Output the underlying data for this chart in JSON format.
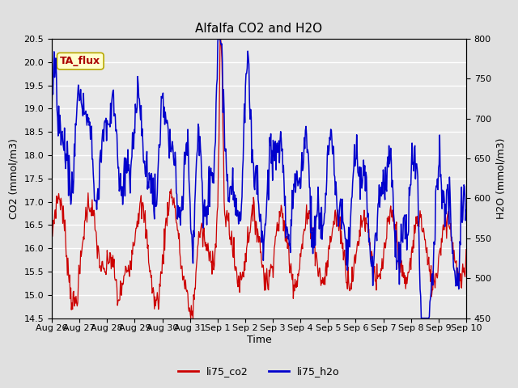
{
  "title": "Alfalfa CO2 and H2O",
  "xlabel": "Time",
  "ylabel_left": "CO2 (mmol/m3)",
  "ylabel_right": "H2O (mmol/m3)",
  "ylim_left": [
    14.5,
    20.5
  ],
  "ylim_right": [
    450,
    800
  ],
  "xtick_labels": [
    "Aug 26",
    "Aug 27",
    "Aug 28",
    "Aug 29",
    "Aug 30",
    "Aug 31",
    "Sep 1",
    "Sep 2",
    "Sep 3",
    "Sep 4",
    "Sep 5",
    "Sep 6",
    "Sep 7",
    "Sep 8",
    "Sep 9",
    "Sep 10"
  ],
  "annotation_text": "TA_flux",
  "annotation_bg": "#ffffcc",
  "annotation_border": "#b8a800",
  "annotation_text_color": "#aa0000",
  "co2_color": "#cc0000",
  "h2o_color": "#0000cc",
  "legend_entries": [
    "li75_co2",
    "li75_h2o"
  ],
  "bg_color": "#e0e0e0",
  "plot_bg_color": "#e8e8e8",
  "grid_color": "white",
  "title_fontsize": 11,
  "axis_label_fontsize": 9,
  "tick_fontsize": 8,
  "legend_fontsize": 9,
  "figsize": [
    6.4,
    4.8
  ],
  "dpi": 100
}
